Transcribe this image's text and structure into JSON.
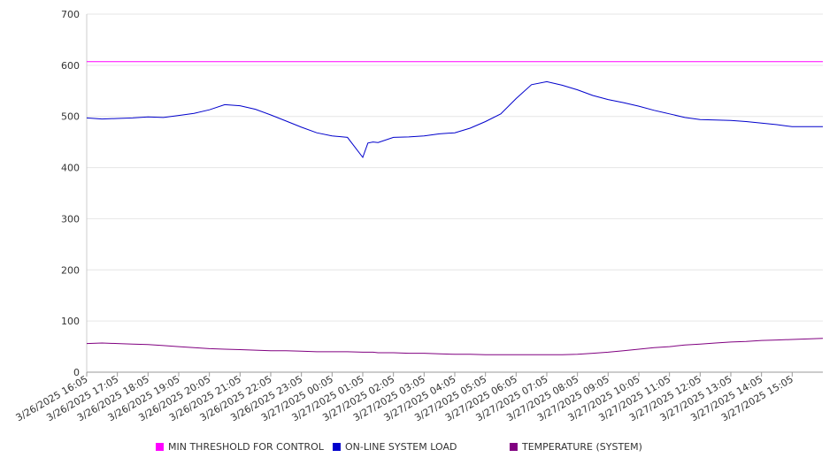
{
  "chart_data": {
    "type": "line",
    "title": "",
    "xlabel": "",
    "ylabel": "",
    "ylim": [
      0,
      700
    ],
    "yticks": [
      0,
      100,
      200,
      300,
      400,
      500,
      600,
      700
    ],
    "xticks": [
      "3/26/2025 16:05",
      "3/26/2025 17:05",
      "3/26/2025 18:05",
      "3/26/2025 19:05",
      "3/26/2025 20:05",
      "3/26/2025 21:05",
      "3/26/2025 22:05",
      "3/26/2025 23:05",
      "3/27/2025 00:05",
      "3/27/2025 01:05",
      "3/27/2025 02:05",
      "3/27/2025 03:05",
      "3/27/2025 04:05",
      "3/27/2025 05:05",
      "3/27/2025 06:05",
      "3/27/2025 07:05",
      "3/27/2025 08:05",
      "3/27/2025 09:05",
      "3/27/2025 10:05",
      "3/27/2025 11:05",
      "3/27/2025 12:05",
      "3/27/2025 13:05",
      "3/27/2025 14:05",
      "3/27/2025 15:05"
    ],
    "x": [
      "16:05",
      "16:35",
      "17:05",
      "17:35",
      "18:05",
      "18:35",
      "19:05",
      "19:35",
      "20:05",
      "20:35",
      "21:05",
      "21:35",
      "22:05",
      "22:35",
      "23:05",
      "23:35",
      "00:05",
      "00:35",
      "01:05",
      "01:15",
      "01:25",
      "01:35",
      "02:05",
      "02:35",
      "03:05",
      "03:35",
      "04:05",
      "04:35",
      "05:05",
      "05:35",
      "06:05",
      "06:35",
      "07:05",
      "07:35",
      "08:05",
      "08:35",
      "09:05",
      "09:35",
      "10:05",
      "10:35",
      "11:05",
      "11:35",
      "12:05",
      "12:35",
      "13:05",
      "13:35",
      "14:05",
      "14:35",
      "15:05",
      "15:35",
      "16:05"
    ],
    "grid": true,
    "legend_position": "bottom",
    "series": [
      {
        "name": "MIN THRESHOLD FOR CONTROL",
        "color": "#ff00ff",
        "values": [
          607,
          607,
          607,
          607,
          607,
          607,
          607,
          607,
          607,
          607,
          607,
          607,
          607,
          607,
          607,
          607,
          607,
          607,
          607,
          607,
          607,
          607,
          607,
          607,
          607,
          607,
          607,
          607,
          607,
          607,
          607,
          607,
          607,
          607,
          607,
          607,
          607,
          607,
          607,
          607,
          607,
          607,
          607,
          607,
          607,
          607,
          607,
          607,
          607,
          607,
          607
        ]
      },
      {
        "name": "ON-LINE SYSTEM LOAD",
        "color": "#0000cc",
        "values": [
          497,
          495,
          496,
          497,
          499,
          498,
          502,
          506,
          513,
          523,
          521,
          514,
          503,
          491,
          479,
          468,
          462,
          459,
          420,
          448,
          450,
          449,
          459,
          460,
          462,
          466,
          468,
          477,
          490,
          505,
          535,
          562,
          568,
          561,
          552,
          541,
          533,
          527,
          520,
          512,
          505,
          498,
          494,
          493,
          492,
          490,
          487,
          484,
          480,
          480,
          480
        ]
      },
      {
        "name": "TEMPERATURE (SYSTEM)",
        "color": "#800080",
        "values": [
          56,
          57,
          56,
          55,
          54,
          52,
          50,
          48,
          46,
          45,
          44,
          43,
          42,
          42,
          41,
          40,
          40,
          40,
          39,
          39,
          39,
          38,
          38,
          37,
          37,
          36,
          35,
          35,
          34,
          34,
          34,
          34,
          34,
          34,
          35,
          37,
          39,
          42,
          45,
          48,
          50,
          53,
          55,
          57,
          59,
          60,
          62,
          63,
          64,
          65,
          66
        ]
      }
    ]
  }
}
